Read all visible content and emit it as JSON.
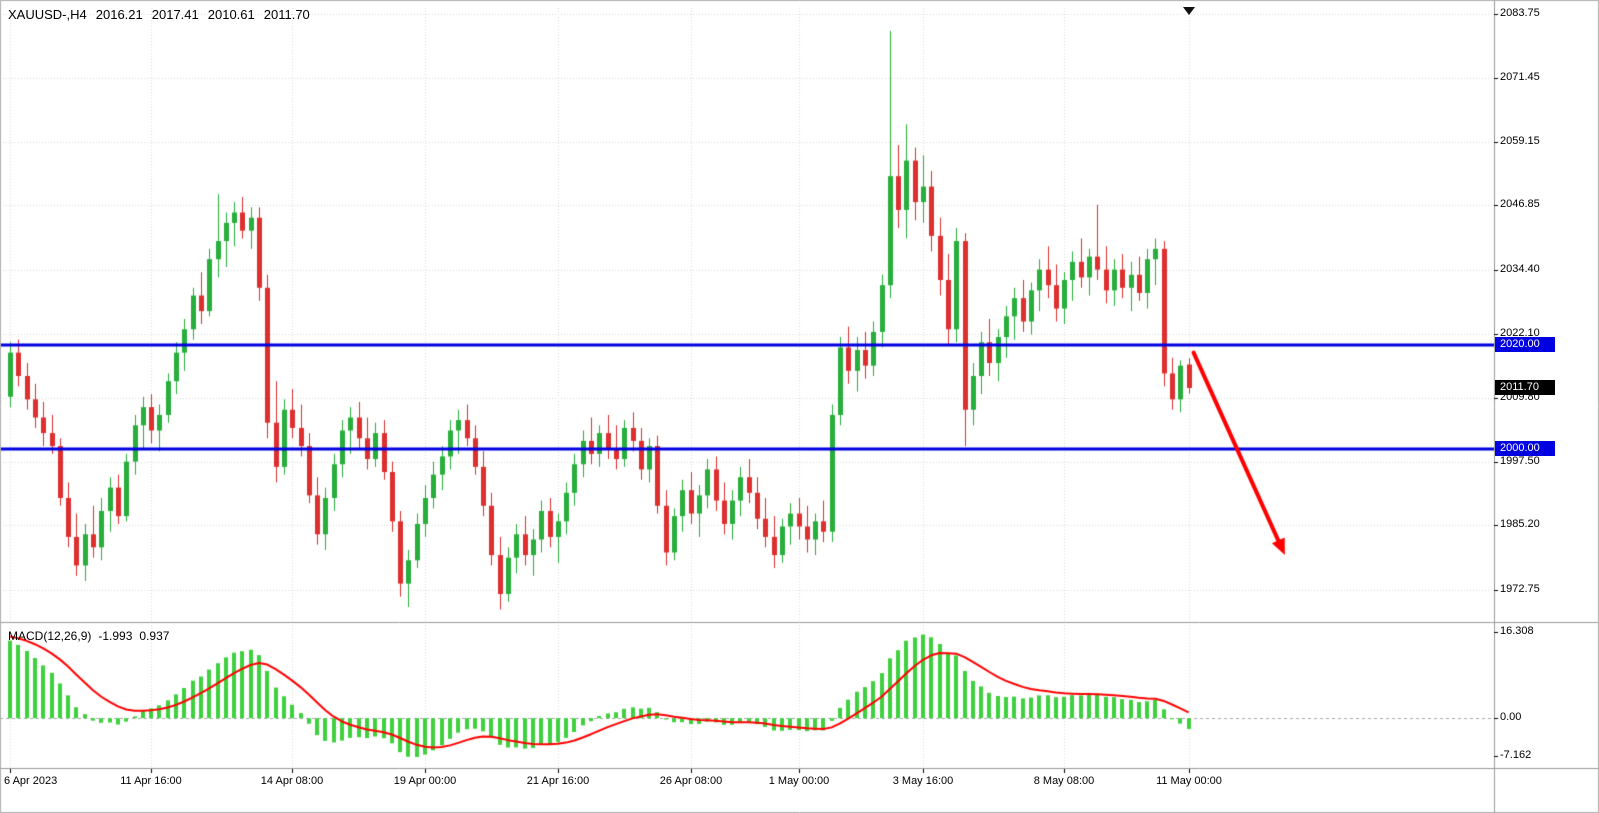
{
  "info_bar": {
    "symbol_period": "XAUUSD-,H4",
    "open": "2016.21",
    "high": "2017.41",
    "low": "2010.61",
    "close": "2011.70"
  },
  "price_axis": {
    "ticks": [
      {
        "label": "2083.75",
        "value": 2083.75
      },
      {
        "label": "2071.45",
        "value": 2071.45
      },
      {
        "label": "2059.15",
        "value": 2059.15
      },
      {
        "label": "2046.85",
        "value": 2046.85
      },
      {
        "label": "2034.40",
        "value": 2034.4
      },
      {
        "label": "2022.10",
        "value": 2022.1
      },
      {
        "label": "2009.80",
        "value": 2009.8
      },
      {
        "label": "1997.50",
        "value": 1997.5
      },
      {
        "label": "1985.20",
        "value": 1985.2
      },
      {
        "label": "1972.75",
        "value": 1972.75
      }
    ],
    "tags": [
      {
        "label": "2020.00",
        "value": 2020.0,
        "bg": "#0000E0",
        "fg": "#FFFFFF",
        "name": "resistance-price-tag"
      },
      {
        "label": "2011.70",
        "value": 2011.7,
        "bg": "#000000",
        "fg": "#FFFFFF",
        "name": "bid-price-tag"
      },
      {
        "label": "2000.00",
        "value": 2000.0,
        "bg": "#0000E0",
        "fg": "#FFFFFF",
        "name": "support-price-tag"
      }
    ]
  },
  "time_axis": {
    "ticks": [
      {
        "label": "6 Apr 2023",
        "index": 0
      },
      {
        "label": "11 Apr 16:00",
        "index": 17
      },
      {
        "label": "14 Apr 08:00",
        "index": 34
      },
      {
        "label": "19 Apr 00:00",
        "index": 50
      },
      {
        "label": "21 Apr 16:00",
        "index": 66
      },
      {
        "label": "26 Apr 08:00",
        "index": 82
      },
      {
        "label": "1 May 00:00",
        "index": 95
      },
      {
        "label": "3 May 16:00",
        "index": 110
      },
      {
        "label": "8 May 08:00",
        "index": 127
      },
      {
        "label": "11 May 00:00",
        "index": 142
      }
    ]
  },
  "macd_panel": {
    "label": "MACD(12,26,9)",
    "value_main": "-1.993",
    "value_signal": "0.937",
    "ticks": [
      {
        "label": "16.308",
        "value": 16.308
      },
      {
        "label": "0.00",
        "value": 0
      },
      {
        "label": "-7.162",
        "value": -7.162
      }
    ]
  },
  "levels": [
    {
      "price": 2020.0,
      "color": "#0000E0",
      "width": 3
    },
    {
      "price": 2000.0,
      "color": "#0000E0",
      "width": 3
    }
  ],
  "annotations": {
    "arrow": {
      "color": "#FF0000",
      "width": 4,
      "start": {
        "index": 142.6,
        "price": 2018.5
      },
      "end": {
        "index": 153.6,
        "price": 1979.5
      }
    }
  },
  "chart_data": {
    "type": "candlestick",
    "symbol": "XAUUSD-",
    "timeframe": "H4",
    "ylim": [
      1966.8,
      2084.9
    ],
    "grid": true,
    "candles": [
      [
        2010.0,
        2020.5,
        2008.0,
        2018.5
      ],
      [
        2018.5,
        2021.0,
        2012.0,
        2014.0
      ],
      [
        2014.0,
        2016.5,
        2007.5,
        2009.5
      ],
      [
        2009.5,
        2012.5,
        2004.0,
        2006.0
      ],
      [
        2006.0,
        2009.0,
        2000.5,
        2003.0
      ],
      [
        2003.0,
        2006.5,
        1999.0,
        2000.5
      ],
      [
        2000.5,
        2002.0,
        1989.0,
        1990.5
      ],
      [
        1990.5,
        1993.5,
        1981.0,
        1983.0
      ],
      [
        1983.0,
        1987.5,
        1975.5,
        1977.5
      ],
      [
        1977.5,
        1985.5,
        1974.5,
        1983.5
      ],
      [
        1983.5,
        1989.0,
        1979.0,
        1981.0
      ],
      [
        1981.0,
        1990.5,
        1978.5,
        1988.0
      ],
      [
        1988.0,
        1994.5,
        1984.0,
        1992.5
      ],
      [
        1992.5,
        1995.0,
        1985.5,
        1987.0
      ],
      [
        1987.0,
        1999.0,
        1986.0,
        1997.5
      ],
      [
        1997.5,
        2006.5,
        1995.0,
        2004.5
      ],
      [
        2004.5,
        2010.0,
        2000.0,
        2008.0
      ],
      [
        2008.0,
        2010.5,
        2001.0,
        2003.5
      ],
      [
        2003.5,
        2008.5,
        1999.5,
        2006.5
      ],
      [
        2006.5,
        2014.5,
        2005.0,
        2013.0
      ],
      [
        2013.0,
        2020.5,
        2010.5,
        2018.5
      ],
      [
        2018.5,
        2025.0,
        2015.0,
        2023.0
      ],
      [
        2023.0,
        2031.0,
        2021.0,
        2029.5
      ],
      [
        2029.5,
        2034.0,
        2024.0,
        2026.5
      ],
      [
        2026.5,
        2038.5,
        2025.5,
        2036.5
      ],
      [
        2036.5,
        2049.0,
        2033.0,
        2040.0
      ],
      [
        2040.0,
        2045.5,
        2035.0,
        2043.5
      ],
      [
        2043.5,
        2047.5,
        2039.0,
        2045.5
      ],
      [
        2045.5,
        2048.5,
        2040.5,
        2042.0
      ],
      [
        2042.0,
        2046.5,
        2038.5,
        2044.5
      ],
      [
        2044.5,
        2046.5,
        2028.5,
        2031.0
      ],
      [
        2031.0,
        2033.5,
        2002.0,
        2005.0
      ],
      [
        2005.0,
        2013.0,
        1993.5,
        1996.5
      ],
      [
        1996.5,
        2009.5,
        1995.0,
        2007.5
      ],
      [
        2007.5,
        2011.5,
        2002.0,
        2004.0
      ],
      [
        2004.0,
        2008.5,
        1998.5,
        2000.5
      ],
      [
        2000.5,
        2003.0,
        1989.5,
        1991.0
      ],
      [
        1991.0,
        1994.5,
        1981.5,
        1983.5
      ],
      [
        1983.5,
        1992.5,
        1980.5,
        1990.5
      ],
      [
        1990.5,
        1999.0,
        1988.0,
        1997.0
      ],
      [
        1997.0,
        2005.5,
        1994.5,
        2003.5
      ],
      [
        2003.5,
        2008.0,
        1999.0,
        2006.0
      ],
      [
        2006.0,
        2009.0,
        2000.0,
        2002.0
      ],
      [
        2002.0,
        2006.0,
        1996.0,
        1998.0
      ],
      [
        1998.0,
        2005.0,
        1996.5,
        2003.0
      ],
      [
        2003.0,
        2005.5,
        1994.0,
        1995.5
      ],
      [
        1995.5,
        1997.5,
        1984.0,
        1986.0
      ],
      [
        1986.0,
        1988.0,
        1971.5,
        1974.0
      ],
      [
        1974.0,
        1980.5,
        1969.5,
        1978.5
      ],
      [
        1978.5,
        1987.5,
        1977.0,
        1985.5
      ],
      [
        1985.5,
        1993.0,
        1983.0,
        1990.5
      ],
      [
        1990.5,
        1997.5,
        1988.5,
        1995.0
      ],
      [
        1995.0,
        2000.5,
        1992.0,
        1998.5
      ],
      [
        1998.5,
        2005.5,
        1996.0,
        2003.5
      ],
      [
        2003.5,
        2007.5,
        1999.0,
        2005.5
      ],
      [
        2005.5,
        2008.5,
        2000.5,
        2002.0
      ],
      [
        2002.0,
        2004.5,
        1995.0,
        1996.5
      ],
      [
        1996.5,
        1999.5,
        1987.0,
        1989.0
      ],
      [
        1989.0,
        1991.5,
        1977.5,
        1979.5
      ],
      [
        1979.5,
        1983.0,
        1969.0,
        1972.0
      ],
      [
        1972.0,
        1981.0,
        1970.5,
        1979.0
      ],
      [
        1979.0,
        1985.5,
        1976.0,
        1983.5
      ],
      [
        1983.5,
        1987.0,
        1977.5,
        1979.5
      ],
      [
        1979.5,
        1984.5,
        1975.5,
        1982.5
      ],
      [
        1982.5,
        1990.0,
        1980.0,
        1988.0
      ],
      [
        1988.0,
        1990.5,
        1981.0,
        1983.0
      ],
      [
        1983.0,
        1987.5,
        1978.0,
        1986.0
      ],
      [
        1986.0,
        1993.5,
        1983.5,
        1991.5
      ],
      [
        1991.5,
        1999.0,
        1989.0,
        1997.0
      ],
      [
        1997.0,
        2003.5,
        1994.5,
        2001.5
      ],
      [
        2001.5,
        2006.0,
        1997.0,
        1999.0
      ],
      [
        1999.0,
        2004.5,
        1996.5,
        2003.0
      ],
      [
        2003.0,
        2006.5,
        1998.0,
        2000.0
      ],
      [
        2000.0,
        2004.5,
        1996.0,
        1998.0
      ],
      [
        1998.0,
        2005.5,
        1996.5,
        2004.0
      ],
      [
        2004.0,
        2007.0,
        1999.5,
        2001.5
      ],
      [
        2001.5,
        2004.0,
        1994.0,
        1996.0
      ],
      [
        1996.0,
        2002.0,
        1993.5,
        2000.5
      ],
      [
        2000.5,
        2002.5,
        1987.5,
        1989.0
      ],
      [
        1989.0,
        1992.0,
        1977.5,
        1980.0
      ],
      [
        1980.0,
        1988.5,
        1978.5,
        1987.0
      ],
      [
        1987.0,
        1994.0,
        1984.0,
        1992.0
      ],
      [
        1992.0,
        1995.5,
        1985.5,
        1987.5
      ],
      [
        1987.5,
        1993.0,
        1983.0,
        1991.0
      ],
      [
        1991.0,
        1998.0,
        1988.5,
        1996.0
      ],
      [
        1996.0,
        1998.5,
        1988.0,
        1990.0
      ],
      [
        1990.0,
        1993.5,
        1983.5,
        1985.5
      ],
      [
        1985.5,
        1992.0,
        1982.5,
        1990.0
      ],
      [
        1990.0,
        1996.5,
        1987.0,
        1994.5
      ],
      [
        1994.5,
        1998.0,
        1989.5,
        1991.5
      ],
      [
        1991.5,
        1994.5,
        1984.5,
        1986.5
      ],
      [
        1986.5,
        1990.5,
        1981.0,
        1983.0
      ],
      [
        1983.0,
        1987.0,
        1977.0,
        1979.5
      ],
      [
        1979.5,
        1986.5,
        1978.0,
        1985.0
      ],
      [
        1985.0,
        1989.5,
        1981.5,
        1987.5
      ],
      [
        1987.5,
        1990.5,
        1982.5,
        1985.0
      ],
      [
        1985.0,
        1989.0,
        1980.0,
        1982.5
      ],
      [
        1982.5,
        1987.5,
        1979.5,
        1986.0
      ],
      [
        1986.0,
        1990.0,
        1982.0,
        1984.0
      ],
      [
        1984.0,
        2008.5,
        1982.0,
        2006.5
      ],
      [
        2006.5,
        2021.5,
        2004.5,
        2019.5
      ],
      [
        2019.5,
        2023.5,
        2012.5,
        2015.0
      ],
      [
        2015.0,
        2021.5,
        2011.0,
        2019.0
      ],
      [
        2019.0,
        2022.5,
        2013.5,
        2016.0
      ],
      [
        2016.0,
        2024.5,
        2014.0,
        2022.5
      ],
      [
        2022.5,
        2033.5,
        2019.5,
        2031.5
      ],
      [
        2031.5,
        2080.5,
        2029.0,
        2052.5
      ],
      [
        2052.5,
        2058.5,
        2042.5,
        2046.0
      ],
      [
        2046.0,
        2062.5,
        2040.5,
        2055.5
      ],
      [
        2055.5,
        2058.0,
        2044.0,
        2047.5
      ],
      [
        2047.5,
        2056.5,
        2043.5,
        2050.5
      ],
      [
        2050.5,
        2053.5,
        2038.0,
        2041.0
      ],
      [
        2041.0,
        2044.5,
        2029.5,
        2032.5
      ],
      [
        2032.5,
        2037.5,
        2020.0,
        2023.0
      ],
      [
        2023.0,
        2042.5,
        2020.5,
        2040.0
      ],
      [
        2040.0,
        2041.5,
        2000.5,
        2007.5
      ],
      [
        2007.5,
        2016.5,
        2004.5,
        2014.0
      ],
      [
        2014.0,
        2022.5,
        2010.5,
        2020.5
      ],
      [
        2020.5,
        2025.0,
        2014.0,
        2016.5
      ],
      [
        2016.5,
        2023.0,
        2013.0,
        2021.5
      ],
      [
        2021.5,
        2027.5,
        2017.5,
        2025.5
      ],
      [
        2025.5,
        2031.0,
        2021.0,
        2029.0
      ],
      [
        2029.0,
        2032.5,
        2022.5,
        2024.5
      ],
      [
        2024.5,
        2032.0,
        2022.0,
        2030.5
      ],
      [
        2030.5,
        2036.5,
        2026.5,
        2034.5
      ],
      [
        2034.5,
        2039.0,
        2029.0,
        2031.5
      ],
      [
        2031.5,
        2035.5,
        2024.5,
        2027.0
      ],
      [
        2027.0,
        2034.0,
        2024.0,
        2032.5
      ],
      [
        2032.5,
        2038.0,
        2028.5,
        2036.0
      ],
      [
        2036.0,
        2040.5,
        2031.0,
        2033.0
      ],
      [
        2033.0,
        2038.5,
        2029.5,
        2037.0
      ],
      [
        2037.0,
        2047.0,
        2032.5,
        2034.5
      ],
      [
        2034.5,
        2039.0,
        2028.0,
        2030.5
      ],
      [
        2030.5,
        2036.5,
        2027.5,
        2034.5
      ],
      [
        2034.5,
        2037.5,
        2029.0,
        2031.0
      ],
      [
        2031.0,
        2036.0,
        2026.5,
        2033.5
      ],
      [
        2033.5,
        2037.0,
        2028.5,
        2030.0
      ],
      [
        2030.0,
        2038.5,
        2027.0,
        2036.5
      ],
      [
        2036.5,
        2040.5,
        2031.5,
        2038.5
      ],
      [
        2038.5,
        2040.0,
        2012.0,
        2014.5
      ],
      [
        2014.5,
        2017.5,
        2007.5,
        2009.5
      ],
      [
        2009.5,
        2017.0,
        2007.0,
        2016.0
      ],
      [
        2016.21,
        2017.41,
        2010.61,
        2011.7
      ]
    ],
    "macd": {
      "fast": 12,
      "slow": 26,
      "signal": 9,
      "ylim": [
        -9.4,
        17.6
      ],
      "seed_ema_fast": 2009.0,
      "seed_ema_slow": 1994.0,
      "seed_signal": 15.6
    },
    "colors": {
      "bull": "#27AE3B",
      "bear": "#DE2F2F",
      "macd_hist": "#3FD03F",
      "macd_signal": "#FF0000",
      "grid": "#DBDBDB",
      "zero_line": "#A8A8A8",
      "level_line": "#0000E0",
      "arrow": "#FF0000",
      "separator": "#999999",
      "border": "#B0B0B0",
      "text": "#000000"
    }
  }
}
